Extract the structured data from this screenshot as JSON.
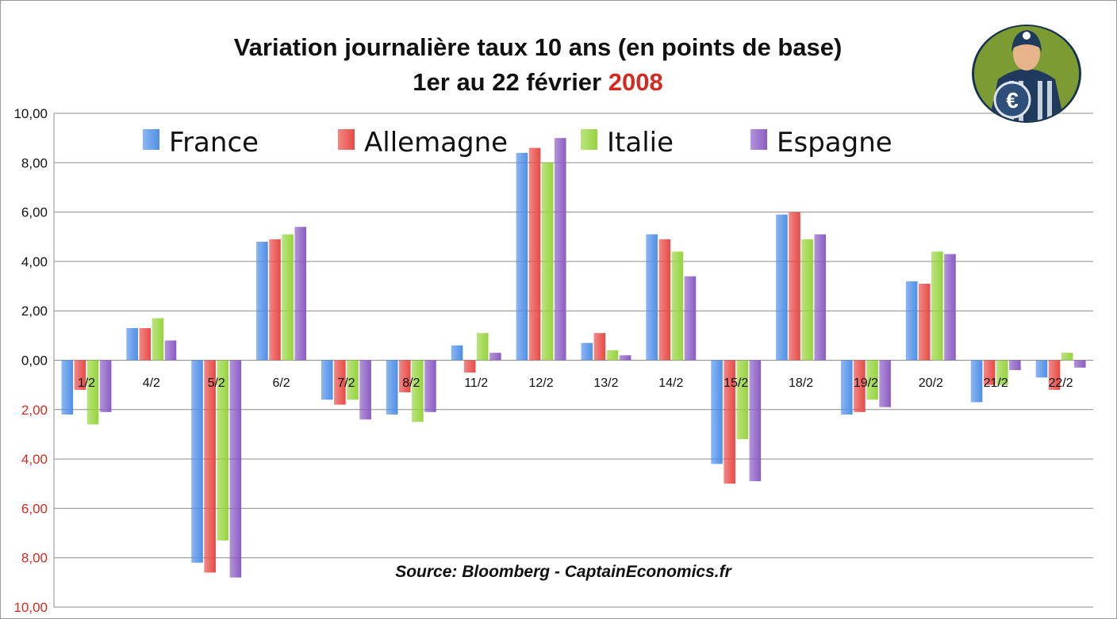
{
  "chart_data": {
    "type": "bar",
    "title": "Variation journalière taux 10 ans (en points de base)",
    "subtitle_prefix": "1er au 22 février ",
    "subtitle_year": "2008",
    "categories": [
      "1/2",
      "4/2",
      "5/2",
      "6/2",
      "7/2",
      "8/2",
      "11/2",
      "12/2",
      "13/2",
      "14/2",
      "15/2",
      "18/2",
      "19/2",
      "20/2",
      "21/2",
      "22/2"
    ],
    "series": [
      {
        "name": "France",
        "color": "#4f8fe8",
        "values": [
          -2.2,
          1.3,
          -8.2,
          4.8,
          -1.6,
          -2.2,
          0.6,
          8.4,
          0.7,
          5.1,
          -4.2,
          5.9,
          -2.2,
          3.2,
          -1.7,
          -0.7
        ]
      },
      {
        "name": "Allemagne",
        "color": "#e84a45",
        "values": [
          -1.2,
          1.3,
          -8.6,
          4.9,
          -1.8,
          -1.3,
          -0.5,
          8.6,
          1.1,
          4.9,
          -5.0,
          6.0,
          -2.1,
          3.1,
          -1.0,
          -1.2
        ]
      },
      {
        "name": "Italie",
        "color": "#96d43c",
        "values": [
          -2.6,
          1.7,
          -7.3,
          5.1,
          -1.6,
          -2.5,
          1.1,
          8.0,
          0.4,
          4.4,
          -3.2,
          4.9,
          -1.6,
          4.4,
          -1.0,
          0.3
        ]
      },
      {
        "name": "Espagne",
        "color": "#8a5cc4",
        "values": [
          -2.1,
          0.8,
          -8.8,
          5.4,
          -2.4,
          -2.1,
          0.3,
          9.0,
          0.2,
          3.4,
          -4.9,
          5.1,
          -1.9,
          4.3,
          -0.4,
          -0.3
        ]
      }
    ],
    "ylim": [
      -10,
      10
    ],
    "yticks": [
      {
        "value": 10,
        "label": "10,00",
        "color": "#111111"
      },
      {
        "value": 8,
        "label": "8,00",
        "color": "#111111"
      },
      {
        "value": 6,
        "label": "6,00",
        "color": "#111111"
      },
      {
        "value": 4,
        "label": "4,00",
        "color": "#111111"
      },
      {
        "value": 2,
        "label": "2,00",
        "color": "#111111"
      },
      {
        "value": 0,
        "label": "0,00",
        "color": "#111111"
      },
      {
        "value": -2,
        "label": "2,00",
        "color": "#d42b20"
      },
      {
        "value": -4,
        "label": "4,00",
        "color": "#d42b20"
      },
      {
        "value": -6,
        "label": "6,00",
        "color": "#d42b20"
      },
      {
        "value": -8,
        "label": "8,00",
        "color": "#d42b20"
      },
      {
        "value": -10,
        "label": "10,00",
        "color": "#d42b20"
      }
    ],
    "grid": true,
    "legend_position": "top",
    "source": "Source: Bloomberg - CaptainEconomics.fr"
  },
  "logo": {
    "name": "captain-economics-logo"
  }
}
